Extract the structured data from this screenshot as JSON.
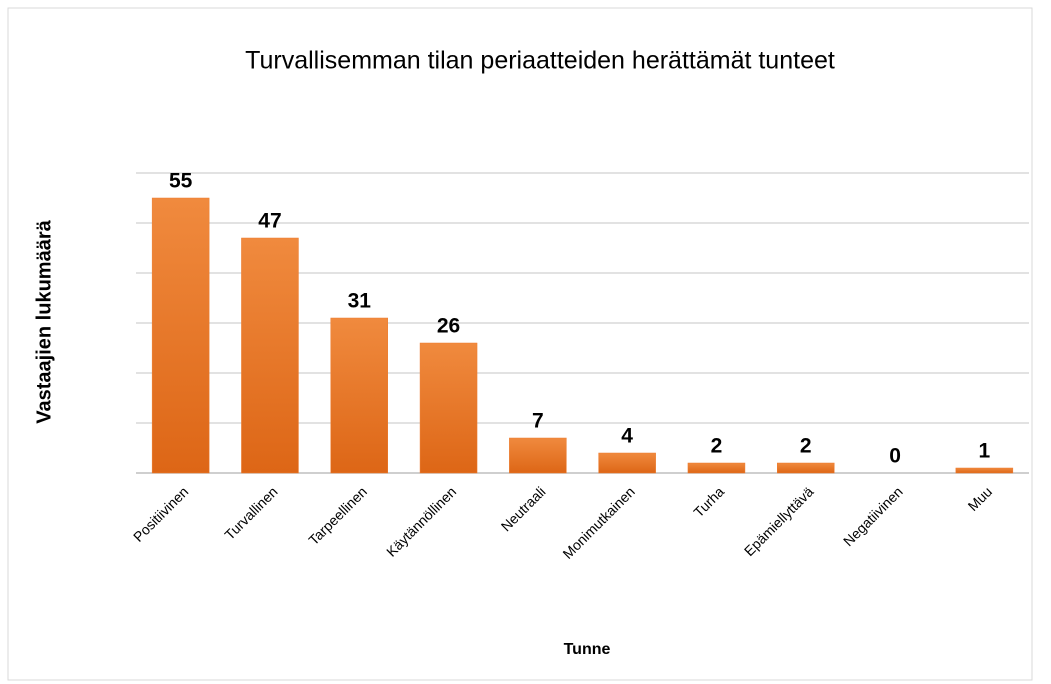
{
  "chart_data": {
    "type": "bar",
    "title": "Turvallisemman tilan periaatteiden herättämät tunteet",
    "x_label": "Tunne",
    "y_label": "Vastaajien lukumäärä",
    "categories": [
      "Positiivinen",
      "Turvallinen",
      "Tarpeellinen",
      "Käytännöllinen",
      "Neutraali",
      "Monimutkainen",
      "Turha",
      "Epämiellyttävä",
      "Negatiivinen",
      "Muu"
    ],
    "values": [
      55,
      47,
      31,
      26,
      7,
      4,
      2,
      2,
      0,
      1
    ],
    "color": "#ed7d31",
    "ylim": [
      0,
      60
    ],
    "yticks": [
      0,
      10,
      20,
      30,
      40,
      50,
      60
    ],
    "ytick_labels": false,
    "grid": true,
    "data_labels": true
  }
}
